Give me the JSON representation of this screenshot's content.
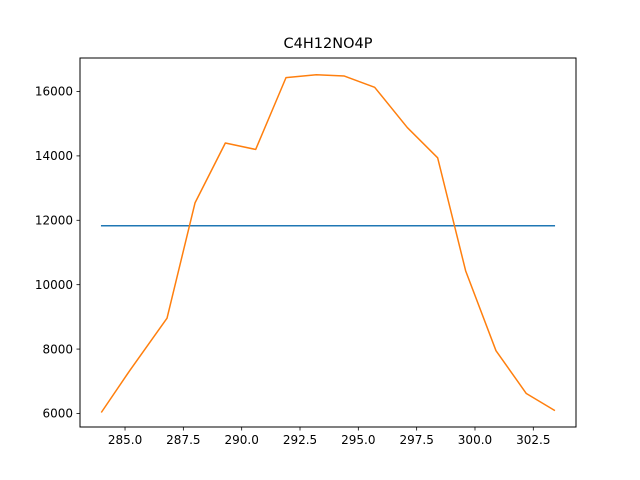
{
  "chart_data": {
    "type": "line",
    "title": "C4H12NO4P",
    "xlabel": "",
    "ylabel": "",
    "xlim": [
      283.07,
      304.33
    ],
    "ylim": [
      5580,
      17040
    ],
    "grid": false,
    "x_ticks": [
      285.0,
      287.5,
      290.0,
      292.5,
      295.0,
      297.5,
      300.0,
      302.5
    ],
    "y_ticks": [
      6000,
      8000,
      10000,
      12000,
      14000,
      16000
    ],
    "series": [
      {
        "color": "#1f77b4",
        "x": [
          284.0,
          303.4
        ],
        "y": [
          11830,
          11830
        ]
      },
      {
        "color": "#ff7f0e",
        "x": [
          284.0,
          285.2,
          286.8,
          288.0,
          289.3,
          290.6,
          291.9,
          293.2,
          294.4,
          295.7,
          297.1,
          298.4,
          299.6,
          300.9,
          302.2,
          303.4
        ],
        "y": [
          6050,
          7330,
          8960,
          12540,
          14400,
          14200,
          16430,
          16520,
          16480,
          16130,
          14880,
          13940,
          10430,
          7950,
          6620,
          6100
        ]
      }
    ]
  }
}
